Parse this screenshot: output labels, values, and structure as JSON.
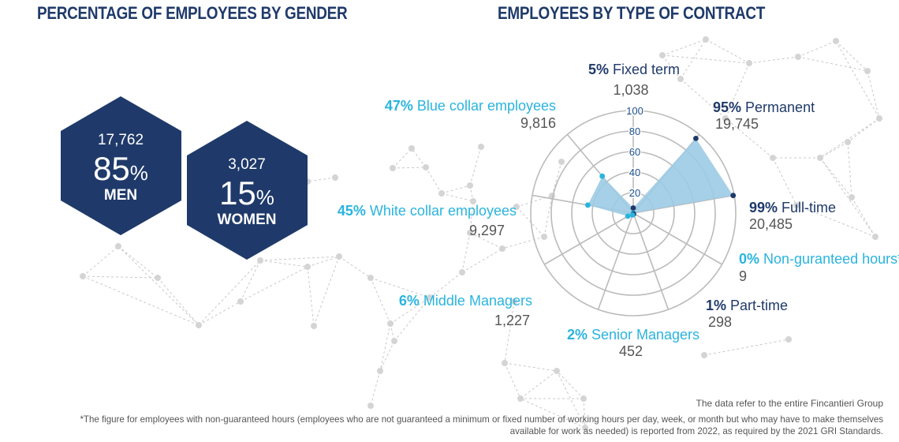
{
  "gender_title": "PERCENTAGE OF EMPLOYEES BY GENDER",
  "contract_title": "EMPLOYEES BY TYPE OF CONTRACT",
  "gender": {
    "men": {
      "count": "17,762",
      "pct_number": "85",
      "pct_sign": "%",
      "label": "MEN"
    },
    "women": {
      "count": "3,027",
      "pct_number": "15",
      "pct_sign": "%",
      "label": "WOMEN"
    }
  },
  "chart_data": {
    "type": "radar",
    "title": "EMPLOYEES BY TYPE OF CONTRACT",
    "rlim": [
      0,
      100
    ],
    "rticks": [
      "20",
      "40",
      "60",
      "80",
      "100"
    ],
    "categories": [
      {
        "pct": "5%",
        "label": "Fixed term",
        "count": "1,038",
        "value": 5,
        "group": "dark"
      },
      {
        "pct": "95%",
        "label": "Permanent",
        "count": "19,745",
        "value": 95,
        "group": "dark"
      },
      {
        "pct": "99%",
        "label": "Full-time",
        "count": "20,485",
        "value": 99,
        "group": "dark"
      },
      {
        "pct": "0%",
        "label": "Non-guranteed hours*",
        "count": "9",
        "value": 0,
        "group": "light"
      },
      {
        "pct": "1%",
        "label": "Part-time",
        "count": "298",
        "value": 1,
        "group": "dark"
      },
      {
        "pct": "2%",
        "label": "Senior Managers",
        "count": "452",
        "value": 2,
        "group": "light"
      },
      {
        "pct": "6%",
        "label": "Middle Managers",
        "count": "1,227",
        "value": 6,
        "group": "light"
      },
      {
        "pct": "45%",
        "label": "White collar employees",
        "count": "9,297",
        "value": 45,
        "group": "light"
      },
      {
        "pct": "47%",
        "label": "Blue collar employees",
        "count": "9,816",
        "value": 47,
        "group": "light"
      }
    ]
  },
  "notes": {
    "source": "The data refer to the entire Fincantieri Group",
    "footnote": "*The figure for employees with non-guaranteed hours (employees who are not guaranteed a minimum or fixed number of working hours per day, week, or month but who may have to make themselves available for work as needed) is reported from 2022, as required by the 2021 GRI Standards."
  },
  "colors": {
    "navy": "#1f3a6a",
    "dark_blue": "#1c4f8c",
    "light_blue": "#2ab4de",
    "fill": "#9ccbe4",
    "grid": "#bbbbbb",
    "count": "#555555"
  }
}
